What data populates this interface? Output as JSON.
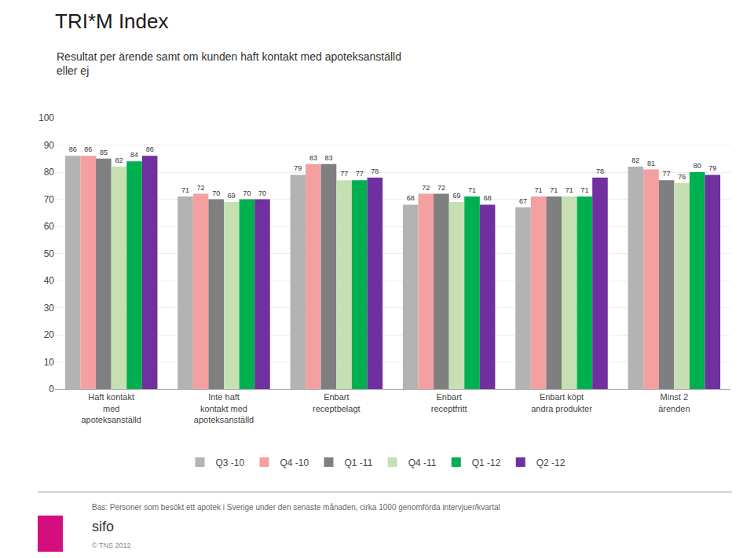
{
  "chart_data": {
    "type": "bar",
    "title": "TRI*M Index",
    "subtitle": "Resultat per ärende samt om kunden haft kontakt med apoteksanställd\neller ej",
    "categories": [
      "Haft kontakt\nmed\napoteksanställd",
      "Inte haft\nkontakt med\napoteksanställd",
      "Enbart\nreceptbelagt",
      "Enbart\nreceptfritt",
      "Enbart köpt\nandra produkter",
      "Minst 2\närenden"
    ],
    "series": [
      {
        "name": "Q3 -10",
        "color": "#b3b3b3",
        "values": [
          86,
          71,
          79,
          68,
          67,
          82
        ]
      },
      {
        "name": "Q4 -10",
        "color": "#f4a0a0",
        "values": [
          86,
          72,
          83,
          72,
          71,
          81
        ]
      },
      {
        "name": "Q1 -11",
        "color": "#7f7f7f",
        "values": [
          85,
          70,
          83,
          72,
          71,
          77
        ]
      },
      {
        "name": "Q4 -11",
        "color": "#c6e0b4",
        "values": [
          82,
          69,
          77,
          69,
          71,
          76
        ]
      },
      {
        "name": "Q1 -12",
        "color": "#00b050",
        "values": [
          84,
          70,
          77,
          71,
          71,
          80
        ]
      },
      {
        "name": "Q2 -12",
        "color": "#7030a0",
        "values": [
          86,
          70,
          78,
          68,
          78,
          79
        ]
      }
    ],
    "ylim": [
      0,
      100
    ],
    "yticks": [
      0,
      10,
      20,
      30,
      40,
      50,
      60,
      70,
      80,
      90,
      100
    ],
    "grid": true,
    "legend": "bottom",
    "data_labels": true,
    "footnote": "Bas: Personer som besökt ett apotek i Sverige under den senaste månaden, cirka 1000 genomförda intervjuer/kvartal",
    "annotations": [
      "sifo",
      "© TNS 2012"
    ]
  }
}
